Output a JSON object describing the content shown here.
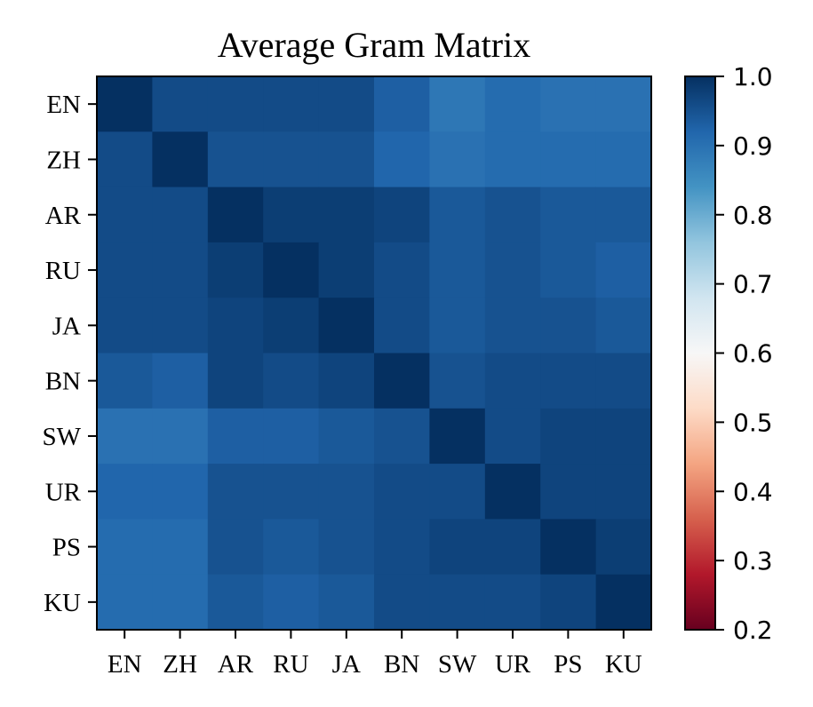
{
  "chart_data": {
    "type": "heatmap",
    "title": "Average Gram Matrix",
    "xlabel": "",
    "ylabel": "",
    "labels": [
      "EN",
      "ZH",
      "AR",
      "RU",
      "JA",
      "BN",
      "SW",
      "UR",
      "PS",
      "KU"
    ],
    "values": [
      [
        1.0,
        0.96,
        0.96,
        0.96,
        0.96,
        0.93,
        0.89,
        0.91,
        0.9,
        0.9
      ],
      [
        0.96,
        1.0,
        0.95,
        0.95,
        0.95,
        0.92,
        0.9,
        0.91,
        0.91,
        0.91
      ],
      [
        0.96,
        0.96,
        1.0,
        0.98,
        0.98,
        0.97,
        0.94,
        0.95,
        0.94,
        0.94
      ],
      [
        0.96,
        0.96,
        0.98,
        1.0,
        0.98,
        0.96,
        0.94,
        0.95,
        0.94,
        0.93
      ],
      [
        0.96,
        0.96,
        0.97,
        0.98,
        1.0,
        0.96,
        0.94,
        0.95,
        0.95,
        0.94
      ],
      [
        0.94,
        0.93,
        0.97,
        0.96,
        0.97,
        1.0,
        0.95,
        0.96,
        0.96,
        0.96
      ],
      [
        0.9,
        0.9,
        0.93,
        0.93,
        0.94,
        0.95,
        1.0,
        0.96,
        0.97,
        0.97
      ],
      [
        0.92,
        0.92,
        0.95,
        0.95,
        0.95,
        0.96,
        0.96,
        1.0,
        0.97,
        0.97
      ],
      [
        0.91,
        0.91,
        0.95,
        0.94,
        0.95,
        0.96,
        0.97,
        0.97,
        1.0,
        0.98
      ],
      [
        0.91,
        0.91,
        0.94,
        0.93,
        0.94,
        0.96,
        0.96,
        0.96,
        0.97,
        1.0
      ]
    ],
    "colorbar": {
      "min": 0.2,
      "max": 1.0,
      "ticks": [
        "0.2",
        "0.3",
        "0.4",
        "0.5",
        "0.6",
        "0.7",
        "0.8",
        "0.9",
        "1.0"
      ],
      "colormap": "RdBu"
    },
    "grid": false
  }
}
